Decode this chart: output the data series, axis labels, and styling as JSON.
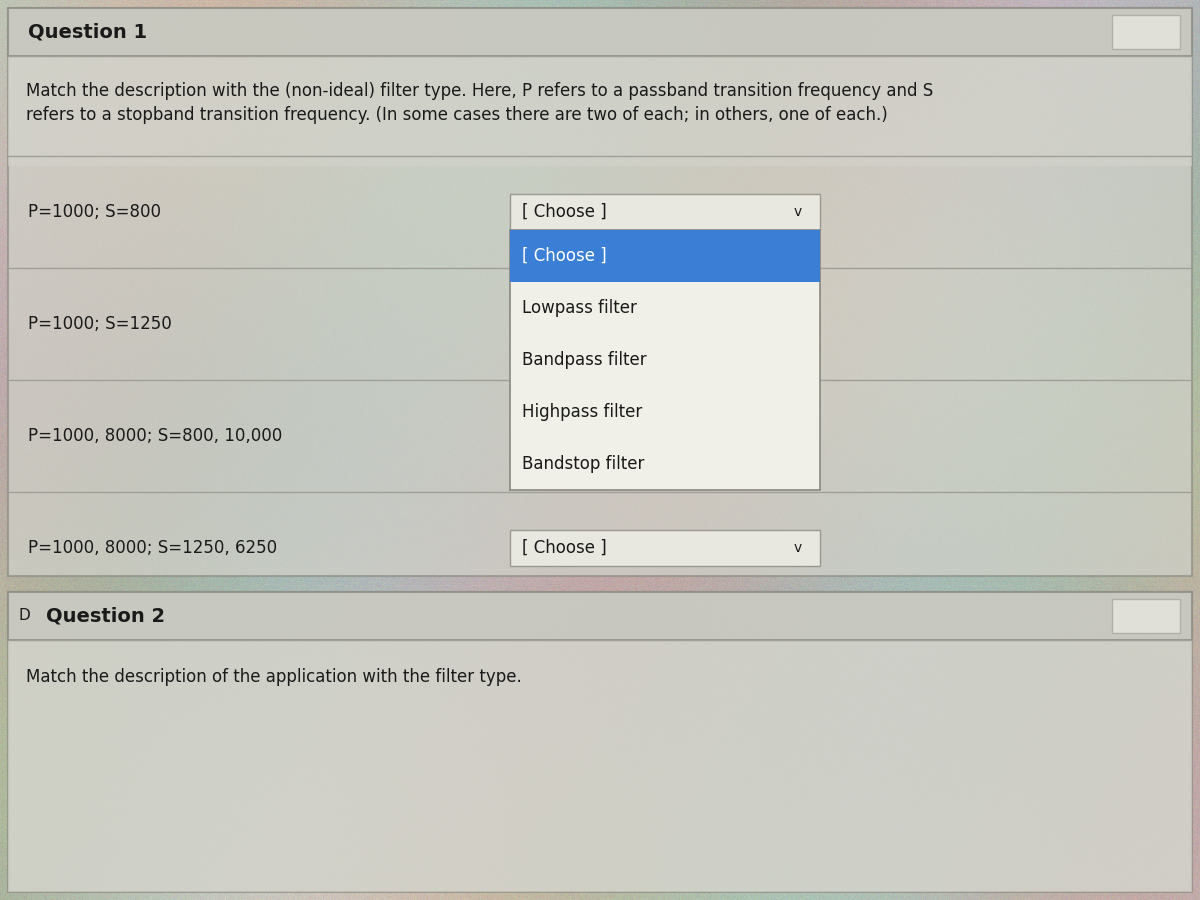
{
  "bg_gradient_colors": [
    "#c8c8b8",
    "#b8b8a8",
    "#c0c0b0"
  ],
  "q1_header": "Question 1",
  "q1_header_bg": "#c8c8c0",
  "q1_box_color": "#d8d8d0",
  "q1_description_line1": "Match the description with the (non-ideal) filter type. Here, P refers to a passband transition frequency and S",
  "q1_description_line2": "refers to a stopband transition frequency. (In some cases there are two of each; in others, one of each.)",
  "rows": [
    {
      "label": "P=1000; S=800"
    },
    {
      "label": "P=1000; S=1250"
    },
    {
      "label": "P=1000, 8000; S=800, 10,000"
    },
    {
      "label": "P=1000, 8000; S=1250, 6250"
    }
  ],
  "dropdown_items": [
    "[ Choose ]",
    "Lowpass filter",
    "Bandpass filter",
    "Highpass filter",
    "Bandstop filter"
  ],
  "dropdown_selected_idx": 0,
  "dropdown_selected_bg": "#3a7fd5",
  "dropdown_bg": "#f0f0e8",
  "dropdown_border": "#888880",
  "choose_bg": "#e8e8e0",
  "choose_border": "#999990",
  "q2_header": "Question 2",
  "q2_description": "Match the description of the application with the filter type.",
  "white_box_color": "#e8e8e0",
  "text_color": "#1a1a1a",
  "header_text_size": 14,
  "body_text_size": 12,
  "row_text_size": 12,
  "dropdown_text_size": 12,
  "outer_border_color": "#909088",
  "separator_color": "#a0a098",
  "chevron": "v"
}
